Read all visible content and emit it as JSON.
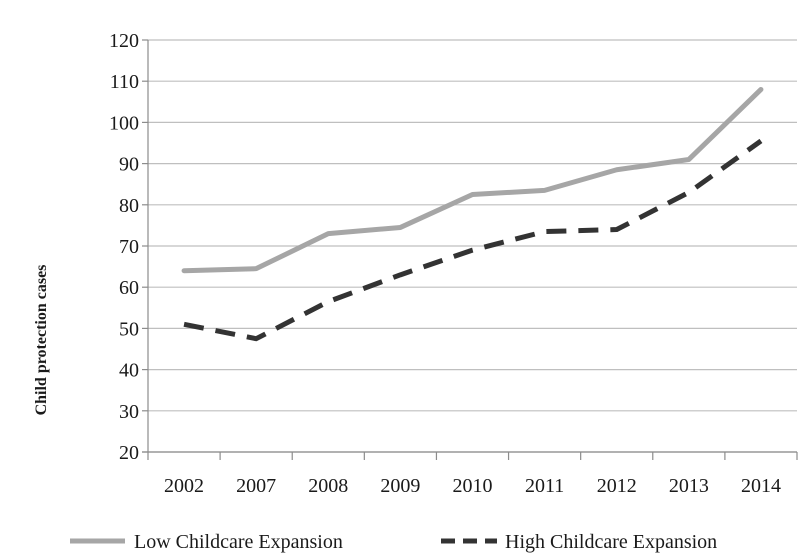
{
  "chart_data": {
    "type": "line",
    "categories": [
      "2002",
      "2007",
      "2008",
      "2009",
      "2010",
      "2011",
      "2012",
      "2013",
      "2014"
    ],
    "series": [
      {
        "name": "Low Childcare Expansion",
        "values": [
          64,
          64.5,
          73,
          74.5,
          82.5,
          83.5,
          88.5,
          91,
          108
        ],
        "color": "#a6a6a6",
        "style": "solid"
      },
      {
        "name": "High Childcare Expansion",
        "values": [
          51,
          47.5,
          56.5,
          63,
          69,
          73.5,
          74,
          83,
          95.5
        ],
        "color": "#333333",
        "style": "dashed"
      }
    ],
    "ylabel": "Child protection cases",
    "xlabel": "",
    "title": "",
    "ylim": [
      20,
      120
    ],
    "yticks": [
      20,
      30,
      40,
      50,
      60,
      70,
      80,
      90,
      100,
      110,
      120
    ],
    "grid": true,
    "legend_position": "bottom"
  }
}
